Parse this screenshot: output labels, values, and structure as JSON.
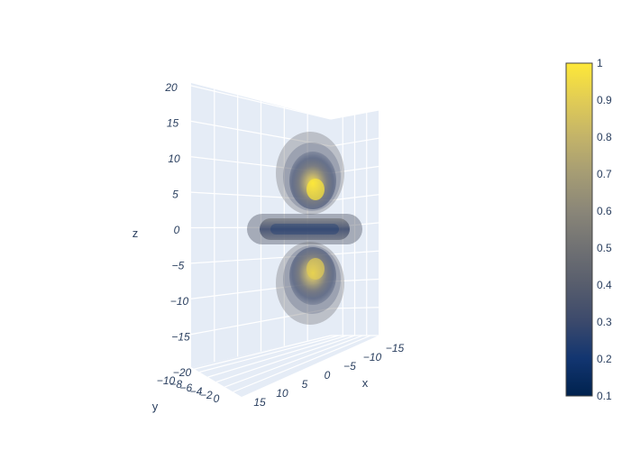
{
  "chart_data": {
    "type": "volume",
    "title": "",
    "axes": {
      "x": {
        "label": "x",
        "ticks": [
          "15",
          "10",
          "5",
          "0",
          "−5",
          "−10",
          "−15"
        ]
      },
      "y": {
        "label": "y",
        "ticks": [
          "−10",
          "−8",
          "−6",
          "−4",
          "−2",
          "0"
        ]
      },
      "z": {
        "label": "z",
        "ticks": [
          "20",
          "15",
          "10",
          "5",
          "0",
          "−5",
          "−10",
          "−15",
          "−20"
        ],
        "range": [
          -20,
          20
        ]
      }
    },
    "colorbar": {
      "colorscale": "Cividis",
      "range": [
        0.1,
        1
      ],
      "ticks": [
        "1",
        "0.9",
        "0.8",
        "0.7",
        "0.6",
        "0.5",
        "0.4",
        "0.3",
        "0.2",
        "0.1"
      ],
      "colors": [
        "#00224e",
        "#123570",
        "#3b496c",
        "#575d6d",
        "#707173",
        "#8a8678",
        "#a59c74",
        "#c3b369",
        "#e1cc55",
        "#fee838"
      ]
    },
    "volume": {
      "description_shape": "p-orbital-like: two lobes along z plus a torus in the z=0 plane",
      "lobes": [
        {
          "center_z": 6,
          "peak_value": 0.9
        },
        {
          "center_z": -6,
          "peak_value": 0.8
        }
      ],
      "torus": {
        "center_z": 0,
        "peak_value": 0.35
      }
    },
    "grid": true,
    "scene_background": "#e5ecf6"
  }
}
